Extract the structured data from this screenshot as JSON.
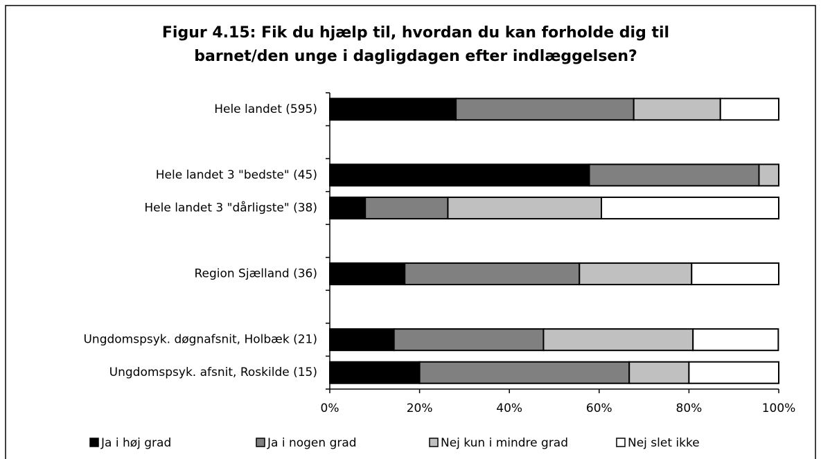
{
  "chart_data": {
    "type": "stacked-bar-horizontal",
    "title": [
      "Figur 4.15: Fik du hjælp til, hvordan du kan forholde dig til",
      "barnet/den unge i dagligdagen efter indlæggelsen?"
    ],
    "categories": [
      "Hele landet  (595)",
      null,
      "Hele landet 3 \"bedste\" (45)",
      "Hele landet 3 \"dårligste\" (38)",
      null,
      "Region Sjælland (36)",
      null,
      "Ungdomspsyk. døgnafsnit, Holbæk (21)",
      "Ungdomspsyk. afsnit, Roskilde (15)"
    ],
    "series": [
      {
        "name": "Ja i høj grad",
        "color": "#000000",
        "values": [
          28.1,
          null,
          57.8,
          7.9,
          null,
          16.7,
          null,
          14.3,
          20.0
        ]
      },
      {
        "name": "Ja i nogen grad",
        "color": "#808080",
        "values": [
          39.6,
          null,
          37.8,
          18.4,
          null,
          38.9,
          null,
          33.3,
          46.7
        ]
      },
      {
        "name": "Nej kun i mindre grad",
        "color": "#c0c0c0",
        "values": [
          19.3,
          null,
          4.4,
          34.2,
          null,
          25.0,
          null,
          33.3,
          13.3
        ]
      },
      {
        "name": "Nej slet ikke",
        "color": "#ffffff",
        "values": [
          13.0,
          null,
          0,
          39.5,
          null,
          19.4,
          null,
          19.0,
          20.0
        ]
      }
    ],
    "xlim": [
      0,
      100
    ],
    "xticks": [
      {
        "value": 0,
        "label": "0%"
      },
      {
        "value": 20,
        "label": "20%"
      },
      {
        "value": 40,
        "label": "40%"
      },
      {
        "value": 60,
        "label": "60%"
      },
      {
        "value": 80,
        "label": "80%"
      },
      {
        "value": 100,
        "label": "100%"
      }
    ],
    "legend": "bottom"
  }
}
